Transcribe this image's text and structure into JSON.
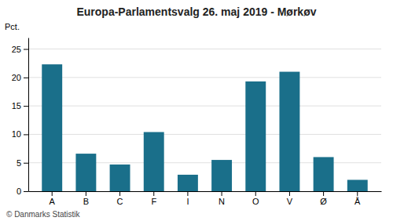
{
  "chart_data": {
    "type": "bar",
    "title": "Europa-Parlamentsvalg 26. maj 2019 - Mørkøv",
    "categories": [
      "A",
      "B",
      "C",
      "F",
      "I",
      "N",
      "O",
      "V",
      "Ø",
      "Å"
    ],
    "values": [
      22.3,
      6.6,
      4.7,
      10.4,
      2.9,
      5.5,
      19.3,
      21.0,
      6.0,
      2.0
    ],
    "color": "#1a6f8a",
    "ylabel": "Pct.",
    "footer": "© Danmarks Statistik",
    "ylim": [
      0,
      27
    ],
    "yticks": [
      0,
      5,
      10,
      15,
      20,
      25
    ],
    "grid": true
  }
}
